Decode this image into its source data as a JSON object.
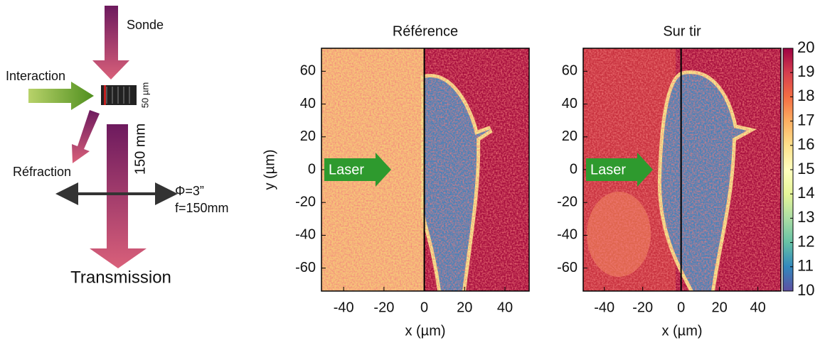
{
  "diagram": {
    "probe": "Sonde",
    "interaction": "Interaction",
    "thickness": "50 µm",
    "refraction": "Réfraction",
    "distance": "150 mm",
    "lens_diameter": "Φ=3”",
    "focal": "f=150mm",
    "transmission": "Transmission"
  },
  "panels": [
    {
      "title": "Référence",
      "xlabel": "x (µm)",
      "ylabel": "y (µm)",
      "annotation": "Laser"
    },
    {
      "title": "Sur tir",
      "xlabel": "x (µm)",
      "annotation": "Laser"
    }
  ],
  "xlim": [
    -51,
    52
  ],
  "xticks": [
    -40,
    -20,
    0,
    20,
    40
  ],
  "ylim": [
    -74,
    74
  ],
  "yticks": [
    -60,
    -40,
    -20,
    0,
    20,
    40,
    60
  ],
  "colorbar": {
    "lim": [
      10,
      20
    ],
    "ticks": [
      10,
      11,
      12,
      13,
      14,
      15,
      16,
      17,
      18,
      19,
      20
    ]
  }
}
